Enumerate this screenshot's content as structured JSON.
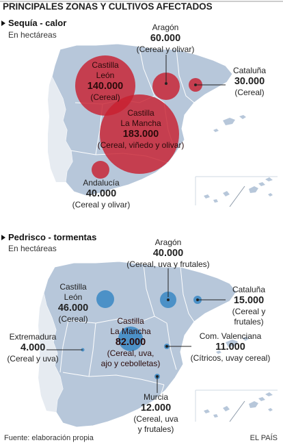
{
  "title": "PRINCIPALES ZONAS Y CULTIVOS AFECTADOS",
  "colors": {
    "map_fill": "#b7c7da",
    "map_border": "#ffffff",
    "drought_bubble": "#c8202f",
    "hail_bubble": "#3d8ac4"
  },
  "drought": {
    "heading": "Sequía - calor",
    "unit": "En hectáreas",
    "regions": [
      {
        "name": "Castilla\nLeón",
        "value": "140.000",
        "crops": "(Cereal)",
        "hectares": 140000
      },
      {
        "name": "Aragón",
        "value": "60.000",
        "crops": "(Cereal y olivar)",
        "hectares": 60000
      },
      {
        "name": "Cataluña",
        "value": "30.000",
        "crops": "(Cereal)",
        "hectares": 30000
      },
      {
        "name": "Castilla\nLa Mancha",
        "value": "183.000",
        "crops": "(Cereal, viñedo y olivar)",
        "hectares": 183000
      },
      {
        "name": "Andalucía",
        "value": "40.000",
        "crops": "(Cereal y olivar)",
        "hectares": 40000
      }
    ]
  },
  "hail": {
    "heading": "Pedrisco - tormentas",
    "unit": "En hectáreas",
    "regions": [
      {
        "name": "Aragón",
        "value": "40.000",
        "crops": "(Cereal, uva y frutales)",
        "hectares": 40000
      },
      {
        "name": "Castilla\nLeón",
        "value": "46.000",
        "crops": "(Cereal)",
        "hectares": 46000
      },
      {
        "name": "Cataluña",
        "value": "15.000",
        "crops": "(Cereal y\nfrutales)",
        "hectares": 15000
      },
      {
        "name": "Castilla\nLa Mancha",
        "value": "82.000",
        "crops": "(Cereal, uva,\najo y cebolletas)",
        "hectares": 82000
      },
      {
        "name": "Extremadura",
        "value": "4.000",
        "crops": "(Cereal y uva)",
        "hectares": 4000
      },
      {
        "name": "Com. Valenciana",
        "value": "11.000",
        "crops": "(Cítricos, uvay cereal)",
        "hectares": 11000
      },
      {
        "name": "Murcia",
        "value": "12.000",
        "crops": "(Cereal, uva\ny frutales)",
        "hectares": 12000
      }
    ]
  },
  "footer": {
    "source": "Fuente: elaboración propia",
    "publisher": "EL PAÍS"
  }
}
